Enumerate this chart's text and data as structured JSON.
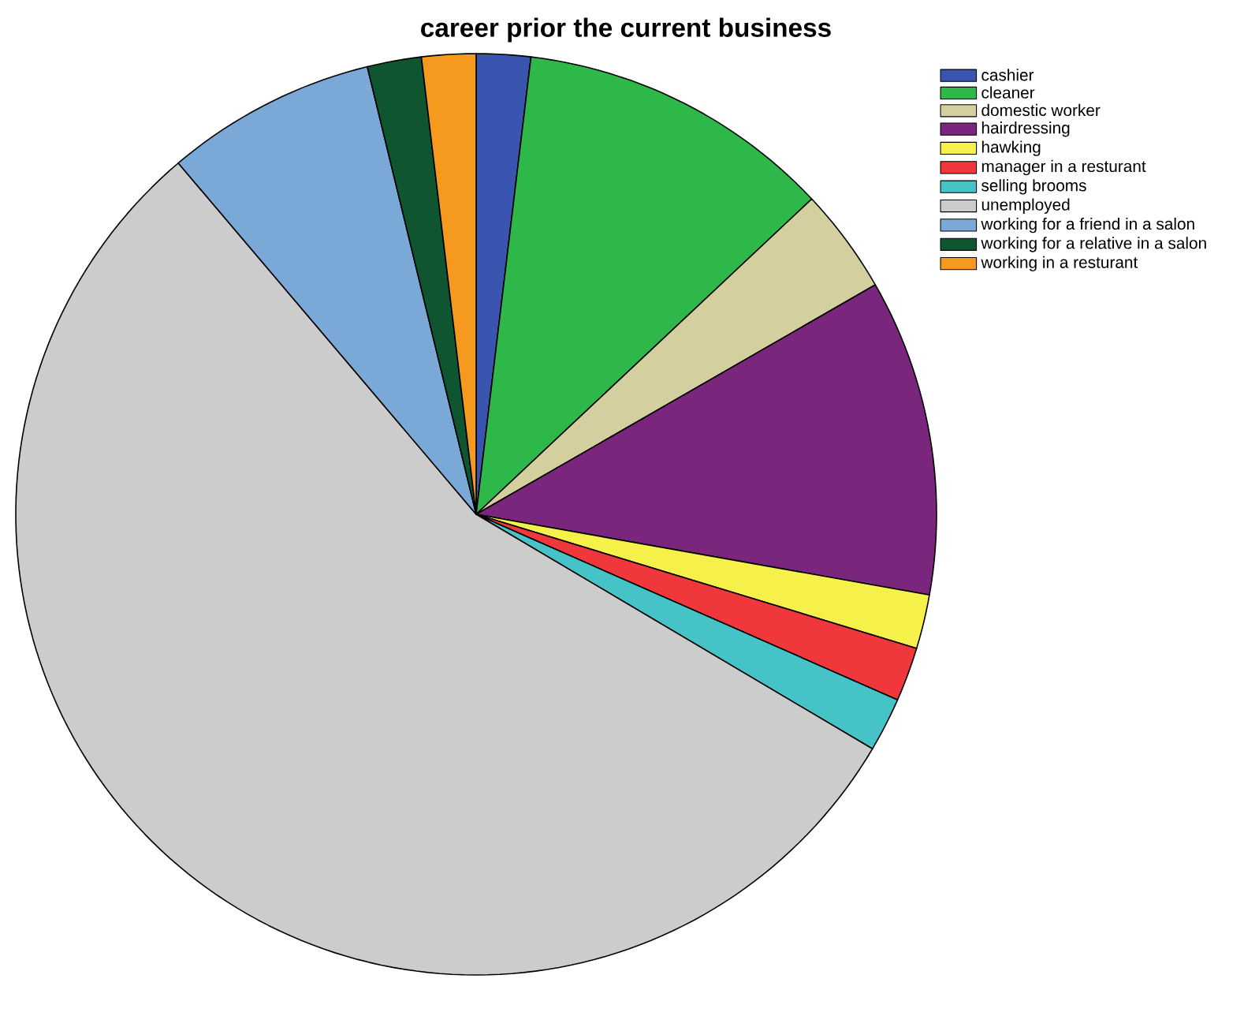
{
  "chart_data": {
    "type": "pie",
    "title": "career prior the current business",
    "categories": [
      "cashier",
      "cleaner",
      "domestic worker",
      "hairdressing",
      "hawking",
      "manager in a resturant",
      "selling brooms",
      "unemployed",
      "working for a friend in a salon",
      "working for a relative in a salon",
      "working in a resturant"
    ],
    "values": [
      1.9,
      11.1,
      3.7,
      11.1,
      1.9,
      1.9,
      1.9,
      55.3,
      7.4,
      1.9,
      1.9
    ],
    "colors": [
      "#3a55b0",
      "#2fb84a",
      "#d4cf9e",
      "#7a267c",
      "#f5f04a",
      "#f0383c",
      "#45c3c7",
      "#cccccc",
      "#7aa9d8",
      "#0e5530",
      "#f59a1f"
    ],
    "legend": "top right"
  }
}
